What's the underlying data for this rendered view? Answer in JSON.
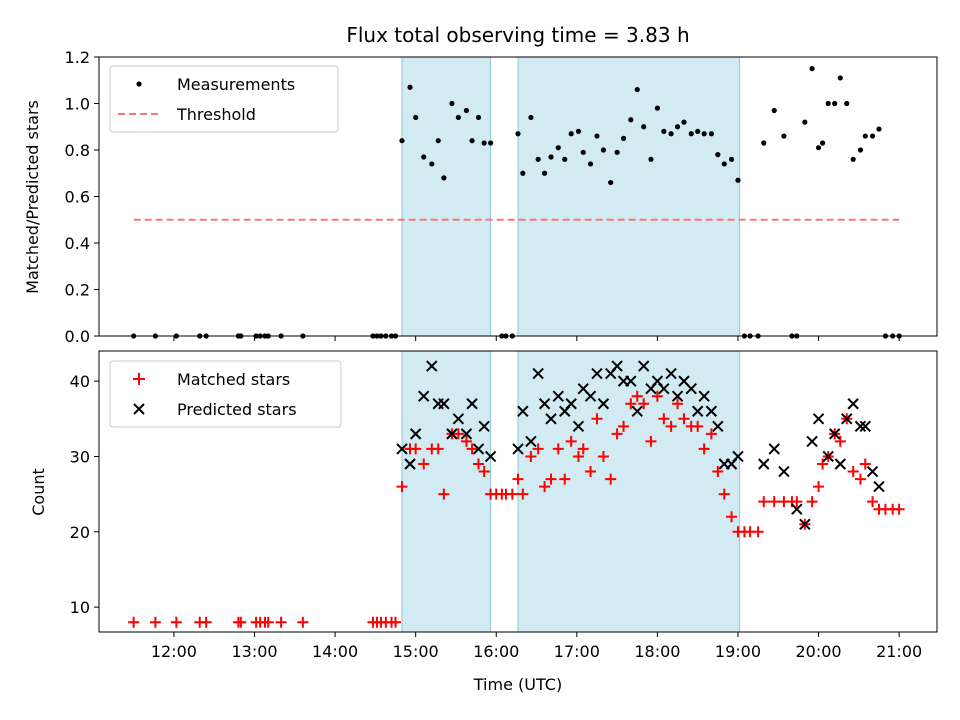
{
  "chart_data": [
    {
      "type": "scatter",
      "title": "Flux total observing time = 3.83 h",
      "xlabel": "",
      "ylabel": "Matched/Predicted stars",
      "xlim": [
        11.07,
        21.47
      ],
      "ylim": [
        0.0,
        1.2
      ],
      "yticks": [
        0.0,
        0.2,
        0.4,
        0.6,
        0.8,
        1.0,
        1.2
      ],
      "ytick_labels": [
        "0.0",
        "0.2",
        "0.4",
        "0.6",
        "0.8",
        "1.0",
        "1.2"
      ],
      "xticks": [
        12,
        13,
        14,
        15,
        16,
        17,
        18,
        19,
        20,
        21
      ],
      "shaded_regions": [
        [
          14.83,
          15.93
        ],
        [
          16.27,
          19.02
        ]
      ],
      "legend": {
        "location": "upper-left",
        "entries": [
          "Measurements",
          "Threshold"
        ]
      },
      "colors": {
        "measurements": "#000000",
        "threshold": "#f47a7a",
        "shade": "#add8e6"
      },
      "threshold": {
        "name": "Threshold",
        "value": 0.5,
        "x_range": [
          11.5,
          21.0
        ]
      },
      "series": [
        {
          "name": "Measurements",
          "x": [
            11.5,
            11.77,
            12.03,
            12.32,
            12.4,
            12.8,
            12.83,
            13.02,
            13.07,
            13.13,
            13.17,
            13.33,
            13.6,
            14.47,
            14.52,
            14.57,
            14.63,
            14.7,
            14.75,
            14.83,
            14.93,
            15.0,
            15.1,
            15.2,
            15.28,
            15.35,
            15.45,
            15.53,
            15.63,
            15.7,
            15.78,
            15.85,
            15.93,
            16.07,
            16.12,
            16.2,
            16.27,
            16.33,
            16.43,
            16.52,
            16.6,
            16.68,
            16.77,
            16.85,
            16.93,
            17.02,
            17.08,
            17.17,
            17.25,
            17.33,
            17.42,
            17.5,
            17.58,
            17.67,
            17.75,
            17.83,
            17.92,
            18.0,
            18.08,
            18.17,
            18.25,
            18.33,
            18.42,
            18.5,
            18.58,
            18.67,
            18.75,
            18.83,
            18.92,
            19.0,
            19.08,
            19.15,
            19.25,
            19.32,
            19.45,
            19.57,
            19.67,
            19.73,
            19.83,
            19.92,
            20.0,
            20.05,
            20.12,
            20.2,
            20.27,
            20.35,
            20.43,
            20.52,
            20.58,
            20.67,
            20.75,
            20.83,
            20.92,
            21.0
          ],
          "y": [
            0.0,
            0.0,
            0.0,
            0.0,
            0.0,
            0.0,
            0.0,
            0.0,
            0.0,
            0.0,
            0.0,
            0.0,
            0.0,
            0.0,
            0.0,
            0.0,
            0.0,
            0.0,
            0.0,
            0.84,
            1.07,
            0.94,
            0.77,
            0.74,
            0.84,
            0.68,
            1.0,
            0.94,
            0.97,
            0.84,
            0.94,
            0.83,
            0.83,
            0.0,
            0.0,
            0.0,
            0.87,
            0.7,
            0.94,
            0.76,
            0.7,
            0.77,
            0.81,
            0.76,
            0.87,
            0.88,
            0.79,
            0.74,
            0.86,
            0.8,
            0.66,
            0.79,
            0.85,
            0.93,
            1.06,
            0.9,
            0.76,
            0.98,
            0.88,
            0.87,
            0.9,
            0.92,
            0.87,
            0.88,
            0.87,
            0.87,
            0.78,
            0.74,
            0.76,
            0.67,
            0.0,
            0.0,
            0.0,
            0.83,
            0.97,
            0.86,
            0.0,
            0.0,
            0.92,
            1.15,
            0.81,
            0.83,
            1.0,
            1.0,
            1.11,
            1.0,
            0.76,
            0.8,
            0.86,
            0.86,
            0.89,
            0.0,
            0.0,
            0.0
          ]
        }
      ]
    },
    {
      "type": "scatter",
      "title": "",
      "xlabel": "Time (UTC)",
      "ylabel": "Count",
      "xlim": [
        11.07,
        21.47
      ],
      "ylim": [
        6.7,
        44.0
      ],
      "yticks": [
        10,
        20,
        30,
        40
      ],
      "ytick_labels": [
        "10",
        "20",
        "30",
        "40"
      ],
      "xticks": [
        12,
        13,
        14,
        15,
        16,
        17,
        18,
        19,
        20,
        21
      ],
      "xtick_labels": [
        "12:00",
        "13:00",
        "14:00",
        "15:00",
        "16:00",
        "17:00",
        "18:00",
        "19:00",
        "20:00",
        "21:00"
      ],
      "shaded_regions": [
        [
          14.83,
          15.93
        ],
        [
          16.27,
          19.02
        ]
      ],
      "legend": {
        "location": "upper-left",
        "entries": [
          "Matched stars",
          "Predicted stars"
        ]
      },
      "colors": {
        "matched": "#ff0000",
        "predicted": "#000000",
        "shade": "#add8e6"
      },
      "series": [
        {
          "name": "Matched stars",
          "marker": "plus",
          "x": [
            11.5,
            11.77,
            12.03,
            12.32,
            12.4,
            12.8,
            12.83,
            13.02,
            13.07,
            13.13,
            13.17,
            13.33,
            13.6,
            14.47,
            14.52,
            14.57,
            14.63,
            14.7,
            14.75,
            14.83,
            14.93,
            15.0,
            15.1,
            15.2,
            15.28,
            15.35,
            15.45,
            15.53,
            15.63,
            15.7,
            15.78,
            15.85,
            15.93,
            16.0,
            16.07,
            16.12,
            16.2,
            16.27,
            16.33,
            16.43,
            16.52,
            16.6,
            16.68,
            16.77,
            16.85,
            16.93,
            17.02,
            17.08,
            17.17,
            17.25,
            17.33,
            17.42,
            17.5,
            17.58,
            17.67,
            17.75,
            17.83,
            17.92,
            18.0,
            18.08,
            18.17,
            18.25,
            18.33,
            18.42,
            18.5,
            18.58,
            18.67,
            18.75,
            18.83,
            18.92,
            19.0,
            19.08,
            19.15,
            19.25,
            19.32,
            19.45,
            19.57,
            19.67,
            19.73,
            19.83,
            19.92,
            20.0,
            20.05,
            20.12,
            20.2,
            20.27,
            20.35,
            20.43,
            20.52,
            20.58,
            20.67,
            20.75,
            20.83,
            20.92,
            21.0
          ],
          "y": [
            8,
            8,
            8,
            8,
            8,
            8,
            8,
            8,
            8,
            8,
            8,
            8,
            8,
            8,
            8,
            8,
            8,
            8,
            8,
            26,
            31,
            31,
            29,
            31,
            31,
            25,
            33,
            33,
            32,
            31,
            29,
            28,
            25,
            25,
            25,
            25,
            25,
            27,
            25,
            30,
            31,
            26,
            27,
            31,
            27,
            32,
            30,
            31,
            28,
            35,
            30,
            27,
            33,
            34,
            37,
            38,
            37,
            32,
            38,
            35,
            34,
            37,
            35,
            34,
            34,
            31,
            33,
            28,
            25,
            22,
            20,
            20,
            20,
            20,
            24,
            24,
            24,
            24,
            24,
            21,
            24,
            26,
            29,
            30,
            33,
            32,
            35,
            28,
            27,
            29,
            24,
            23,
            23,
            23,
            23
          ]
        },
        {
          "name": "Predicted stars",
          "marker": "x",
          "x": [
            14.83,
            14.93,
            15.0,
            15.1,
            15.2,
            15.28,
            15.35,
            15.45,
            15.53,
            15.63,
            15.7,
            15.78,
            15.85,
            15.93,
            16.27,
            16.33,
            16.43,
            16.52,
            16.6,
            16.68,
            16.77,
            16.85,
            16.93,
            17.02,
            17.08,
            17.17,
            17.25,
            17.33,
            17.42,
            17.5,
            17.58,
            17.67,
            17.75,
            17.83,
            17.92,
            18.0,
            18.08,
            18.17,
            18.25,
            18.33,
            18.42,
            18.5,
            18.58,
            18.67,
            18.75,
            18.83,
            18.92,
            19.0,
            19.32,
            19.45,
            19.57,
            19.73,
            19.83,
            19.92,
            20.0,
            20.12,
            20.2,
            20.27,
            20.35,
            20.43,
            20.52,
            20.58,
            20.67,
            20.75
          ],
          "y": [
            31,
            29,
            33,
            38,
            42,
            37,
            37,
            33,
            35,
            33,
            37,
            31,
            34,
            30,
            31,
            36,
            32,
            41,
            37,
            35,
            38,
            36,
            37,
            34,
            39,
            38,
            41,
            37,
            41,
            42,
            40,
            40,
            36,
            42,
            39,
            40,
            39,
            41,
            38,
            40,
            39,
            36,
            38,
            36,
            34,
            29,
            29,
            30,
            29,
            31,
            28,
            23,
            21,
            32,
            35,
            30,
            33,
            29,
            35,
            37,
            34,
            34,
            28,
            26
          ]
        }
      ]
    }
  ]
}
